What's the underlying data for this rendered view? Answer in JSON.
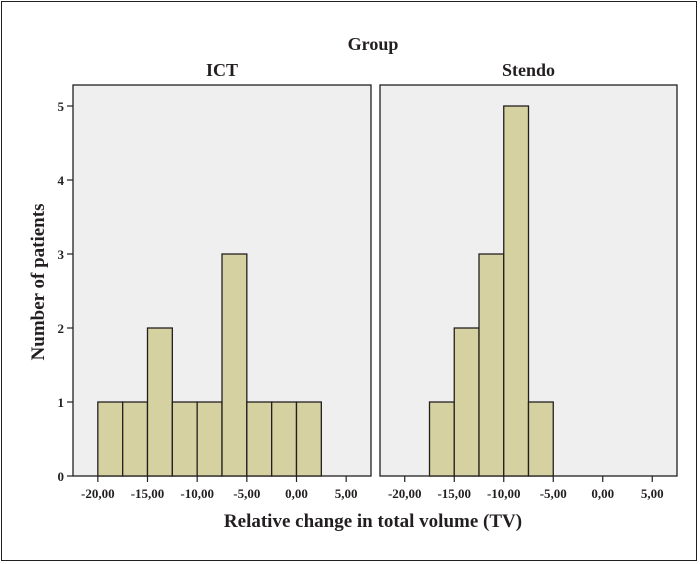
{
  "chart_data": {
    "type": "bar",
    "group_title": "Group",
    "xlabel": "Relative change in total volume (TV)",
    "ylabel": "Number of patients",
    "ylim": [
      0,
      5.5
    ],
    "yticks": [
      "0",
      "1",
      "2",
      "3",
      "4",
      "5"
    ],
    "xlim": [
      -22.5,
      7.5
    ],
    "xticks": [
      {
        "value": -20,
        "label": "-20,00"
      },
      {
        "value": -15,
        "label": "-15,00"
      },
      {
        "value": -10,
        "label": "-10,00"
      },
      {
        "value": -5,
        "label": "-5,00"
      },
      {
        "value": 0,
        "label": "0,00"
      },
      {
        "value": 5,
        "label": "5,00"
      }
    ],
    "bar_color": "#d5d1a0",
    "panel_color": "#efefef",
    "panels": [
      {
        "name": "ICT",
        "bins": [
          {
            "x0": -20.0,
            "x1": -17.5,
            "count": 1
          },
          {
            "x0": -17.5,
            "x1": -15.0,
            "count": 1
          },
          {
            "x0": -15.0,
            "x1": -12.5,
            "count": 2
          },
          {
            "x0": -12.5,
            "x1": -10.0,
            "count": 1
          },
          {
            "x0": -10.0,
            "x1": -7.5,
            "count": 1
          },
          {
            "x0": -7.5,
            "x1": -5.0,
            "count": 3
          },
          {
            "x0": -5.0,
            "x1": -2.5,
            "count": 1
          },
          {
            "x0": -2.5,
            "x1": 0.0,
            "count": 1
          },
          {
            "x0": 0.0,
            "x1": 2.5,
            "count": 1
          }
        ]
      },
      {
        "name": "Stendo",
        "bins": [
          {
            "x0": -17.5,
            "x1": -15.0,
            "count": 1
          },
          {
            "x0": -15.0,
            "x1": -12.5,
            "count": 2
          },
          {
            "x0": -12.5,
            "x1": -10.0,
            "count": 3
          },
          {
            "x0": -10.0,
            "x1": -7.5,
            "count": 5
          },
          {
            "x0": -7.5,
            "x1": -5.0,
            "count": 1
          }
        ]
      }
    ]
  }
}
